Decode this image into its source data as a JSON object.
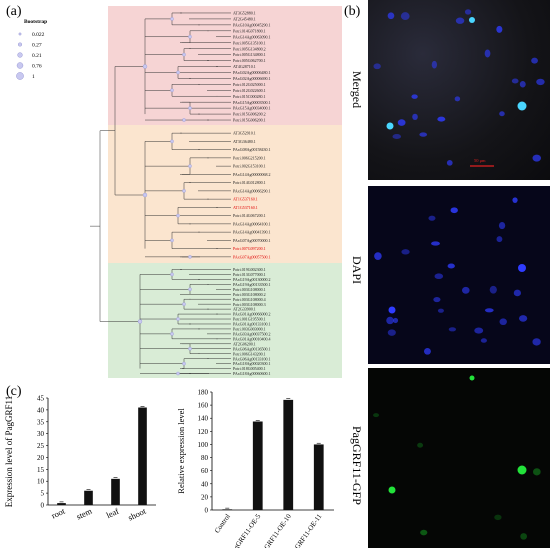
{
  "panels": {
    "a": "(a)",
    "b": "(b)",
    "c": "(c)"
  },
  "bootstrap_legend": {
    "title": "Bootstrap",
    "values": [
      "0.022",
      "0.27",
      "0.21",
      "0.76",
      "1"
    ]
  },
  "tree": {
    "pink": [
      "AT3G52880.1",
      "AT2G45480.1",
      "PAxG10Ag00045290.1",
      "Potri.014G071800.1",
      "PAxG14Ag00063090.1",
      "Potri.005G135100.1",
      "Potri.005G134800.2",
      "Potri.005G134800.1",
      "Potri.005G062700.1",
      "AT4G28710.1",
      "PAxG02Ag00006480.1",
      "PAxG02Ag00006690.1",
      "Potri.012G025000.1",
      "Potri.012G022600.1",
      "Potri.015C000280.1",
      "PAxG15Ag00003500.1",
      "PAxG15Ag00034000.1",
      "Potri.015G006200.2",
      "Potri.015G006200.1"
    ],
    "orange": [
      "AT3G52910.1",
      "AT3G36480.1",
      "PAxG08Ag00158430.1",
      "Potri.006G215200.1",
      "Potri.002G153100.1",
      "PAxG14Ag00000068.2",
      "Potri.014G012800.1",
      "PAxG14Ag00066290.1",
      "AT1G537160.1",
      "AT1G537160.1",
      "Potri.014G067200.1",
      "PAxG14Ag00064100.1",
      "PAxG14Ag00041390.1",
      "PAxG07Ag00070000.1",
      "Potri.007G097200.1",
      "PAxG07Ag00057500.1"
    ],
    "green": [
      "Potri.019G002300.1",
      "Potri.013G077000.1",
      "PAxG19Ag00130000.2",
      "PAxG19Ag00133500.1",
      "Potri.003G108000.1",
      "Potri.003G108000.2",
      "Potri.003G108000.4",
      "Potri.003G108000.3",
      "AT2G33900.1",
      "PAxG01Ag00066000.2",
      "Potri.001G195500.1",
      "PAxG01Ag00133100.1",
      "Potri.003G003000.1",
      "PAxG03Ag00037500.2",
      "PAxG01Ag00010400.4",
      "AT2G06200.1",
      "PAxG06Ag00136500.1",
      "Potri.006G143200.1",
      "PAxG06Ag00133100.1",
      "PAxG18Ag00020300.1",
      "Potri.018G005400.1",
      "PAxG18Ag00060600.1"
    ],
    "red_indices_orange": [
      8,
      9,
      14,
      15
    ]
  },
  "chart_data": [
    {
      "type": "bar",
      "title": "",
      "xlabel": "",
      "ylabel": "Expression level of PagGRF11",
      "categories": [
        "root",
        "stem",
        "leaf",
        "shoot"
      ],
      "values": [
        0.8,
        6,
        11,
        41
      ],
      "ylim": [
        0,
        45
      ],
      "yticks": [
        0,
        5,
        10,
        15,
        20,
        25,
        30,
        35,
        40,
        45
      ],
      "grid": false
    },
    {
      "type": "bar",
      "title": "",
      "xlabel": "",
      "ylabel": "Relative expression level",
      "categories": [
        "Control",
        "PagGRF11-OE-5",
        "PagGRF11-OE-10",
        "PagGRF11-OE-11"
      ],
      "values": [
        1,
        135,
        168,
        100
      ],
      "ylim": [
        0,
        180
      ],
      "yticks": [
        0,
        20,
        40,
        60,
        80,
        100,
        120,
        140,
        160,
        180
      ],
      "grid": false
    }
  ],
  "micro": {
    "labels": {
      "merged": "Merged",
      "dapi": "DAPI",
      "gfp": "PagGRF11-GFP"
    },
    "scale_text": "50 μm",
    "colors": {
      "dapi": "#2f3cff",
      "gfp": "#22e23a",
      "merged_cyan": "#4ad6ff",
      "scale": "#e02020"
    }
  }
}
